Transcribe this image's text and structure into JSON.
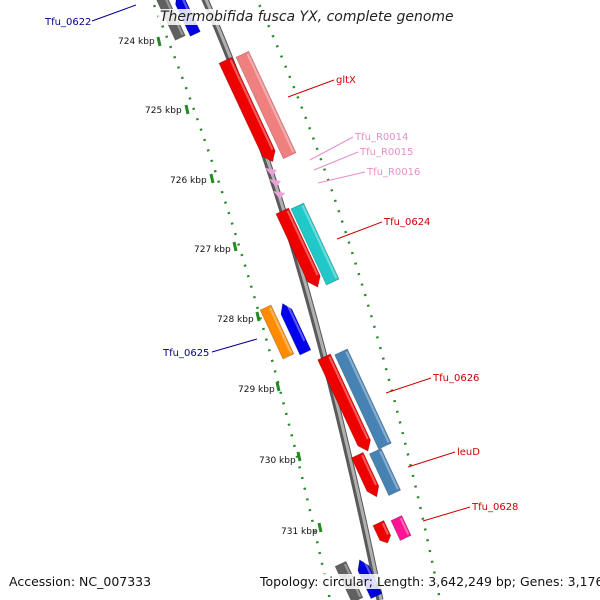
{
  "title": "Thermobifida fusca YX, complete genome",
  "footer": {
    "accession_label": "Accession:",
    "accession": "NC_007333",
    "topology_label": "Topology:",
    "topology": "circular",
    "length_label": "Length:",
    "length": "3,642,249 bp",
    "genes_label": "Genes:",
    "genes": "3,176"
  },
  "ticks": [
    "724 kbp",
    "725 kbp",
    "726 kbp",
    "727 kbp",
    "728 kbp",
    "729 kbp",
    "730 kbp",
    "731 kbp"
  ],
  "genes": [
    {
      "label": "Tfu_0622",
      "color": "#00008b"
    },
    {
      "label": "gltX",
      "color": "#cc0000"
    },
    {
      "label": "Tfu_R0014",
      "color": "#e58fc8"
    },
    {
      "label": "Tfu_R0015",
      "color": "#e58fc8"
    },
    {
      "label": "Tfu_R0016",
      "color": "#e58fc8"
    },
    {
      "label": "Tfu_0624",
      "color": "#cc0000"
    },
    {
      "label": "Tfu_0625",
      "color": "#00008b"
    },
    {
      "label": "Tfu_0626",
      "color": "#cc0000"
    },
    {
      "label": "leuD",
      "color": "#cc0000"
    },
    {
      "label": "Tfu_0628",
      "color": "#cc0000"
    }
  ],
  "colors": {
    "backbone": "#808080",
    "tick_dots": "#228b22",
    "forward_cds": "#ee0000",
    "reverse_cds": "#0000ee",
    "rna": "#f0a0d8",
    "gltX_feature": "#f08080",
    "tfu0624_feature": "#20c8c8",
    "tfu0625_feature": "#ff8c00",
    "tfu0626_feature": "#4682b4",
    "leuD_feature": "#4682b4",
    "tfu0628_feature": "#ff1493",
    "tfu0622_feature": "#7070a0"
  }
}
